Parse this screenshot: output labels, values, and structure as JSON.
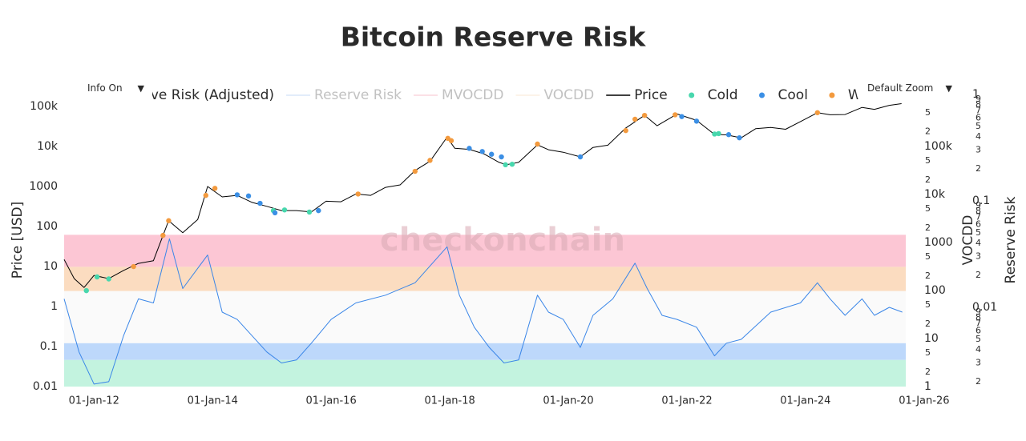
{
  "controls": {
    "info": "Info On",
    "zoom": "Default Zoom"
  },
  "chart_data": {
    "type": "line",
    "title": "Bitcoin Reserve Risk",
    "watermark": "checkonchain",
    "x_scale": "date",
    "xlim": [
      "2011-07-01",
      "2025-09-10"
    ],
    "xticks": [
      {
        "value": "2012-01-01",
        "label": "01-Jan-12"
      },
      {
        "value": "2014-01-01",
        "label": "01-Jan-14"
      },
      {
        "value": "2016-01-01",
        "label": "01-Jan-16"
      },
      {
        "value": "2018-01-01",
        "label": "01-Jan-18"
      },
      {
        "value": "2020-01-01",
        "label": "01-Jan-20"
      },
      {
        "value": "2022-01-01",
        "label": "01-Jan-22"
      },
      {
        "value": "2024-01-01",
        "label": "01-Jan-24"
      },
      {
        "value": "2026-01-01",
        "label": "01-Jan-26"
      }
    ],
    "y_label": "Price [USD]",
    "y_scale": "log",
    "ylim": [
      0.01,
      200000
    ],
    "yticks": [
      0.01,
      0.1,
      1,
      10,
      100,
      1000,
      {
        "value": 10000,
        "label": "10k"
      },
      {
        "value": 100000,
        "label": "100k"
      }
    ],
    "y2_label": "VOCDD",
    "y2_scale": "log",
    "y2lim": [
      1,
      1200000
    ],
    "y2ticks": [
      1,
      2,
      5,
      10,
      {
        "value": 20,
        "label": "2"
      },
      {
        "value": 50,
        "label": "5"
      },
      100,
      {
        "value": 200,
        "label": "2"
      },
      {
        "value": 500,
        "label": "5"
      },
      1000,
      {
        "value": 2000,
        "label": "2"
      },
      {
        "value": 5000,
        "label": "5"
      },
      {
        "value": 10000,
        "label": "10k"
      },
      {
        "value": 20000,
        "label": "2"
      },
      {
        "value": 50000,
        "label": "5"
      },
      {
        "value": 100000,
        "label": "100k"
      },
      {
        "value": 200000,
        "label": "2"
      },
      {
        "value": 500000,
        "label": "5"
      }
    ],
    "y3_label": "Reserve Risk",
    "y3_scale": "log",
    "y3lim": [
      0.0018,
      1
    ],
    "y3ticks": [
      {
        "value": 0.002,
        "label": "2"
      },
      {
        "value": 0.003,
        "label": "3"
      },
      {
        "value": 0.004,
        "label": "4"
      },
      {
        "value": 0.005,
        "label": "5"
      },
      {
        "value": 0.006,
        "label": "6"
      },
      {
        "value": 0.007,
        "label": "7"
      },
      {
        "value": 0.008,
        "label": "8"
      },
      {
        "value": 0.009,
        "label": "9"
      },
      0.01,
      {
        "value": 0.02,
        "label": "2"
      },
      {
        "value": 0.03,
        "label": "3"
      },
      {
        "value": 0.04,
        "label": "4"
      },
      {
        "value": 0.05,
        "label": "5"
      },
      {
        "value": 0.06,
        "label": "6"
      },
      {
        "value": 0.07,
        "label": "7"
      },
      {
        "value": 0.08,
        "label": "8"
      },
      {
        "value": 0.09,
        "label": "9"
      },
      0.1,
      {
        "value": 0.2,
        "label": "2"
      },
      {
        "value": 0.3,
        "label": "3"
      },
      {
        "value": 0.4,
        "label": "4"
      },
      {
        "value": 0.5,
        "label": "5"
      },
      {
        "value": 0.6,
        "label": "6"
      },
      {
        "value": 0.7,
        "label": "7"
      },
      {
        "value": 0.8,
        "label": "8"
      },
      {
        "value": 0.9,
        "label": "9"
      },
      1
    ],
    "bands": [
      {
        "from": 0.024,
        "to": 0.048,
        "color": "#fcc6d4"
      },
      {
        "from": 0.0142,
        "to": 0.024,
        "color": "#fbdcc0"
      },
      {
        "from": 0.0046,
        "to": 0.0142,
        "color": "#fafafa"
      },
      {
        "from": 0.0032,
        "to": 0.0046,
        "color": "#bdd8fb"
      },
      {
        "from": 0.0018,
        "to": 0.0032,
        "color": "#c3f3df"
      }
    ],
    "series": [
      {
        "name": "Reserve Risk (Adjusted)",
        "color": "#3a86e8",
        "mode": "lines",
        "axis": "y3",
        "visible": true,
        "x": [
          "2011-07-01",
          "2011-10-01",
          "2012-01-01",
          "2012-04-01",
          "2012-07-01",
          "2012-10-01",
          "2013-01-01",
          "2013-04-10",
          "2013-07-01",
          "2013-12-01",
          "2014-03-01",
          "2014-06-01",
          "2014-09-01",
          "2014-12-01",
          "2015-03-01",
          "2015-06-01",
          "2015-09-01",
          "2016-01-01",
          "2016-06-01",
          "2016-12-01",
          "2017-06-01",
          "2017-12-15",
          "2018-03-01",
          "2018-06-01",
          "2018-09-01",
          "2018-12-01",
          "2019-03-01",
          "2019-06-25",
          "2019-09-01",
          "2019-12-01",
          "2020-03-15",
          "2020-06-01",
          "2020-10-01",
          "2021-02-15",
          "2021-05-01",
          "2021-08-01",
          "2021-11-01",
          "2022-03-01",
          "2022-06-20",
          "2022-09-01",
          "2022-12-01",
          "2023-06-01",
          "2023-12-01",
          "2024-03-15",
          "2024-06-01",
          "2024-09-01",
          "2024-12-15",
          "2025-03-01",
          "2025-06-01",
          "2025-08-20"
        ],
        "values": [
          0.012,
          0.0038,
          0.0019,
          0.002,
          0.0054,
          0.012,
          0.011,
          0.044,
          0.015,
          0.031,
          0.009,
          0.0077,
          0.0054,
          0.0038,
          0.003,
          0.0032,
          0.0046,
          0.0077,
          0.011,
          0.013,
          0.017,
          0.037,
          0.013,
          0.0065,
          0.0042,
          0.003,
          0.0032,
          0.013,
          0.009,
          0.0077,
          0.0042,
          0.0084,
          0.012,
          0.026,
          0.015,
          0.0084,
          0.0077,
          0.0065,
          0.0035,
          0.0046,
          0.005,
          0.009,
          0.011,
          0.017,
          0.012,
          0.0084,
          0.012,
          0.0084,
          0.01,
          0.009
        ]
      },
      {
        "name": "Reserve Risk",
        "color": "#a9c9f2",
        "mode": "lines",
        "axis": "y3",
        "visible": false
      },
      {
        "name": "MVOCDD",
        "color": "#f5a3b7",
        "mode": "lines",
        "axis": "y2",
        "visible": false
      },
      {
        "name": "VOCDD",
        "color": "#f8dcc0",
        "mode": "lines",
        "axis": "y2",
        "visible": false
      },
      {
        "name": "Price",
        "color": "#000000",
        "mode": "lines",
        "axis": "y",
        "visible": true,
        "x": [
          "2011-07-01",
          "2011-09-01",
          "2011-11-01",
          "2012-01-01",
          "2012-04-01",
          "2012-07-01",
          "2012-10-01",
          "2013-01-01",
          "2013-04-05",
          "2013-07-01",
          "2013-10-01",
          "2013-12-01",
          "2014-03-01",
          "2014-06-01",
          "2014-09-01",
          "2014-12-01",
          "2015-03-01",
          "2015-06-01",
          "2015-09-01",
          "2015-12-01",
          "2016-03-01",
          "2016-06-01",
          "2016-09-01",
          "2016-12-01",
          "2017-03-01",
          "2017-06-01",
          "2017-09-01",
          "2017-12-15",
          "2018-02-01",
          "2018-05-01",
          "2018-08-01",
          "2018-11-01",
          "2018-12-15",
          "2019-03-01",
          "2019-06-25",
          "2019-09-01",
          "2019-12-01",
          "2020-03-15",
          "2020-06-01",
          "2020-09-01",
          "2020-12-20",
          "2021-04-15",
          "2021-07-01",
          "2021-11-01",
          "2022-03-01",
          "2022-06-20",
          "2022-09-01",
          "2022-12-01",
          "2023-03-01",
          "2023-06-01",
          "2023-09-01",
          "2023-12-01",
          "2024-03-15",
          "2024-06-01",
          "2024-09-01",
          "2024-12-15",
          "2025-03-01",
          "2025-06-01",
          "2025-08-15"
        ],
        "values": [
          15,
          5,
          3,
          6,
          5,
          8,
          12,
          14,
          140,
          70,
          150,
          1000,
          550,
          600,
          400,
          320,
          250,
          250,
          230,
          430,
          415,
          650,
          600,
          950,
          1100,
          2500,
          4300,
          17000,
          9000,
          8500,
          6500,
          4000,
          3500,
          4000,
          11000,
          8300,
          7200,
          5500,
          9500,
          10800,
          29000,
          60000,
          33000,
          65000,
          45000,
          20000,
          19500,
          16500,
          28000,
          30000,
          27000,
          42000,
          70000,
          62000,
          63000,
          95000,
          85000,
          107000,
          118000
        ]
      },
      {
        "name": "Cold",
        "color": "#48d7ad",
        "mode": "markers",
        "axis": "y",
        "visible": true,
        "x": [
          "2011-11-15",
          "2012-01-20",
          "2012-04-01",
          "2015-01-10",
          "2015-03-20",
          "2015-08-20",
          "2018-12-10",
          "2019-01-20",
          "2022-06-20",
          "2022-07-15"
        ],
        "values": [
          2.5,
          5.5,
          4.9,
          250,
          260,
          230,
          3500,
          3600,
          20500,
          21000
        ]
      },
      {
        "name": "Cool",
        "color": "#3b8fe5",
        "mode": "markers",
        "axis": "y",
        "visible": true,
        "x": [
          "2014-06-01",
          "2014-08-10",
          "2014-10-20",
          "2015-01-20",
          "2015-10-15",
          "2018-05-01",
          "2018-07-20",
          "2018-09-15",
          "2018-11-15",
          "2020-03-15",
          "2021-11-30",
          "2022-03-01",
          "2022-09-15",
          "2022-11-20"
        ],
        "values": [
          620,
          580,
          380,
          220,
          250,
          9000,
          7500,
          6400,
          5500,
          5500,
          56000,
          43000,
          19800,
          16500
        ]
      },
      {
        "name": "Warm",
        "color": "#f39a3e",
        "mode": "markers",
        "axis": "y",
        "visible": true,
        "x": [
          "2012-09-01",
          "2013-03-01",
          "2013-04-05",
          "2013-11-20",
          "2014-01-15",
          "2016-06-15",
          "2017-06-01",
          "2017-09-01",
          "2017-12-20",
          "2018-01-10",
          "2019-06-25",
          "2020-12-20",
          "2021-02-15",
          "2021-04-15",
          "2021-10-20",
          "2024-03-15"
        ],
        "values": [
          10,
          60,
          140,
          600,
          900,
          650,
          2400,
          4500,
          16000,
          14000,
          11500,
          25000,
          48000,
          60000,
          62000,
          70000
        ]
      }
    ]
  }
}
